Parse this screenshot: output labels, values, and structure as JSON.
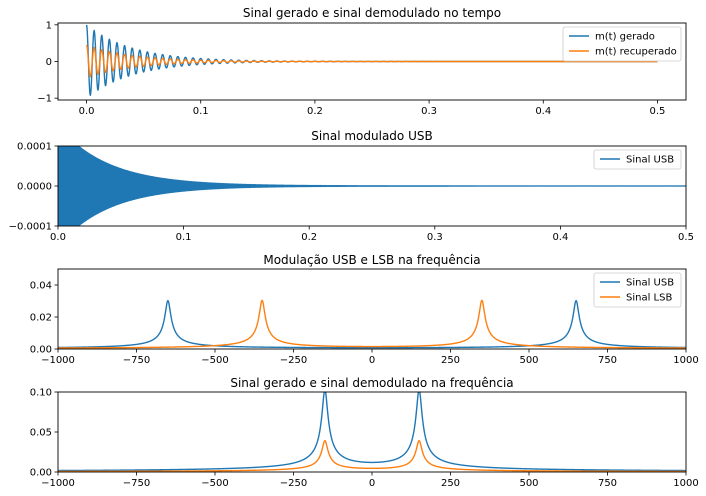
{
  "colors": {
    "blue": "#1f77b4",
    "orange": "#ff7f0e"
  },
  "chart_data": [
    {
      "type": "line",
      "title": "Sinal gerado e sinal demodulado no tempo",
      "xlim": [
        -0.025,
        0.525
      ],
      "ylim": [
        -1.05,
        1.05
      ],
      "xticks": [
        0.0,
        0.1,
        0.2,
        0.3,
        0.4,
        0.5
      ],
      "xtick_labels": [
        "0.0",
        "0.1",
        "0.2",
        "0.3",
        "0.4",
        "0.5"
      ],
      "yticks": [
        1,
        0,
        -1
      ],
      "ytick_labels": [
        "1",
        "0",
        "−1"
      ],
      "legend": "top-right",
      "series": [
        {
          "name": "m(t) gerado",
          "color": "#1f77b4",
          "x_range": [
            0,
            0.5
          ],
          "amplitude": 1.0,
          "decay_rate": 25,
          "frequency_hz": 150
        },
        {
          "name": "m(t) recuperado",
          "color": "#ff7f0e",
          "x_range": [
            0,
            0.5
          ],
          "amplitude": 0.45,
          "decay_rate": 25,
          "frequency_hz": 150
        }
      ]
    },
    {
      "type": "area",
      "title": "Sinal modulado USB",
      "xlim": [
        0,
        0.5
      ],
      "ylim": [
        -0.0001,
        0.0001
      ],
      "xticks": [
        0.0,
        0.1,
        0.2,
        0.3,
        0.4,
        0.5
      ],
      "xtick_labels": [
        "0.0",
        "0.1",
        "0.2",
        "0.3",
        "0.4",
        "0.5"
      ],
      "yticks": [
        0.0001,
        0.0,
        -0.0001
      ],
      "ytick_labels": [
        "0.0001",
        "0.0000",
        "−0.0001"
      ],
      "legend": "top-right",
      "series": [
        {
          "name": "Sinal USB",
          "color": "#1f77b4",
          "x_range": [
            0,
            0.5
          ],
          "envelope_start": 0.00015,
          "decay_rate": 25
        }
      ]
    },
    {
      "type": "line",
      "title": "Modulação USB e LSB na frequência",
      "xlim": [
        -1000,
        1000
      ],
      "ylim": [
        0,
        0.05
      ],
      "xticks": [
        -1000,
        -750,
        -500,
        -250,
        0,
        250,
        500,
        750,
        1000
      ],
      "xtick_labels": [
        "−1000",
        "−750",
        "−500",
        "−250",
        "0",
        "250",
        "500",
        "750",
        "1000"
      ],
      "yticks": [
        0.04,
        0.02,
        0.0
      ],
      "ytick_labels": [
        "0.04",
        "0.02",
        "0.00"
      ],
      "legend": "top-right",
      "series": [
        {
          "name": "Sinal USB",
          "color": "#1f77b4",
          "peaks": [
            {
              "x": -650,
              "y": 0.03
            },
            {
              "x": 650,
              "y": 0.03
            }
          ]
        },
        {
          "name": "Sinal LSB",
          "color": "#ff7f0e",
          "peaks": [
            {
              "x": -350,
              "y": 0.03
            },
            {
              "x": 350,
              "y": 0.03
            }
          ]
        }
      ]
    },
    {
      "type": "line",
      "title": "Sinal gerado e sinal demodulado na frequência",
      "xlim": [
        -1000,
        1000
      ],
      "ylim": [
        0,
        0.1
      ],
      "xticks": [
        -1000,
        -750,
        -500,
        -250,
        0,
        250,
        500,
        750,
        1000
      ],
      "xtick_labels": [
        "−1000",
        "−750",
        "−500",
        "−250",
        "0",
        "250",
        "500",
        "750",
        "1000"
      ],
      "yticks": [
        0.1,
        0.05,
        0.0
      ],
      "ytick_labels": [
        "0.10",
        "0.05",
        "0.00"
      ],
      "legend": "none",
      "series": [
        {
          "color": "#1f77b4",
          "peaks": [
            {
              "x": -150,
              "y": 0.1
            },
            {
              "x": 150,
              "y": 0.1
            }
          ]
        },
        {
          "color": "#ff7f0e",
          "peaks": [
            {
              "x": -150,
              "y": 0.038
            },
            {
              "x": 150,
              "y": 0.038
            }
          ]
        }
      ]
    }
  ]
}
